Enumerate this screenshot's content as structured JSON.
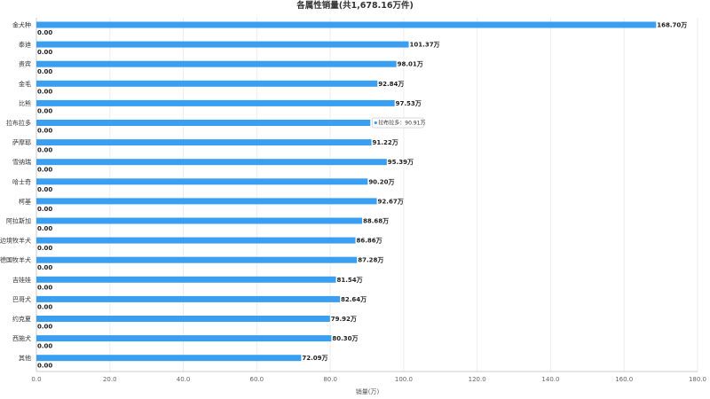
{
  "chart_data": {
    "type": "bar",
    "orientation": "horizontal",
    "title": "各属性销量(共1,678.16万件)",
    "xlabel": "销量(万)",
    "ylabel": "",
    "xlim": [
      0,
      180
    ],
    "xticks": [
      "0.0",
      "20.0",
      "40.0",
      "60.0",
      "80.0",
      "100.0",
      "120.0",
      "140.0",
      "160.0",
      "180.0"
    ],
    "grid": true,
    "categories": [
      "金犬种",
      "泰迪",
      "贵宾",
      "金毛",
      "比熊",
      "拉布拉多",
      "萨摩耶",
      "雪纳瑞",
      "哈士奇",
      "柯基",
      "阿拉斯加",
      "边境牧羊犬",
      "德国牧羊犬",
      "吉娃娃",
      "巴哥犬",
      "约克夏",
      "西施犬",
      "其他"
    ],
    "series": [
      {
        "values": [
          168.7,
          101.37,
          98.01,
          92.84,
          97.53,
          90.91,
          91.22,
          95.39,
          90.2,
          92.67,
          88.68,
          86.86,
          87.28,
          81.54,
          82.64,
          79.92,
          80.3,
          72.09
        ],
        "labels": [
          "168.70万",
          "101.37万",
          "98.01万",
          "92.84万",
          "97.53万",
          "",
          "91.22万",
          "95.39万",
          "90.20万",
          "92.67万",
          "88.68万",
          "86.86万",
          "87.28万",
          "81.54万",
          "82.64万",
          "79.92万",
          "80.30万",
          "72.09万"
        ],
        "color": "#3a9ff0"
      },
      {
        "values": [
          0,
          0,
          0,
          0,
          0,
          0,
          0,
          0,
          0,
          0,
          0,
          0,
          0,
          0,
          0,
          0,
          0,
          0
        ],
        "labels": [
          "0.00",
          "0.00",
          "0.00",
          "0.00",
          "0.00",
          "0.00",
          "0.00",
          "0.00",
          "0.00",
          "0.00",
          "0.00",
          "0.00",
          "0.00",
          "0.00",
          "0.00",
          "0.00",
          "0.00",
          "0.00"
        ]
      }
    ],
    "tooltip": {
      "category_index": 5,
      "text": "拉布拉多：90.91万"
    }
  }
}
